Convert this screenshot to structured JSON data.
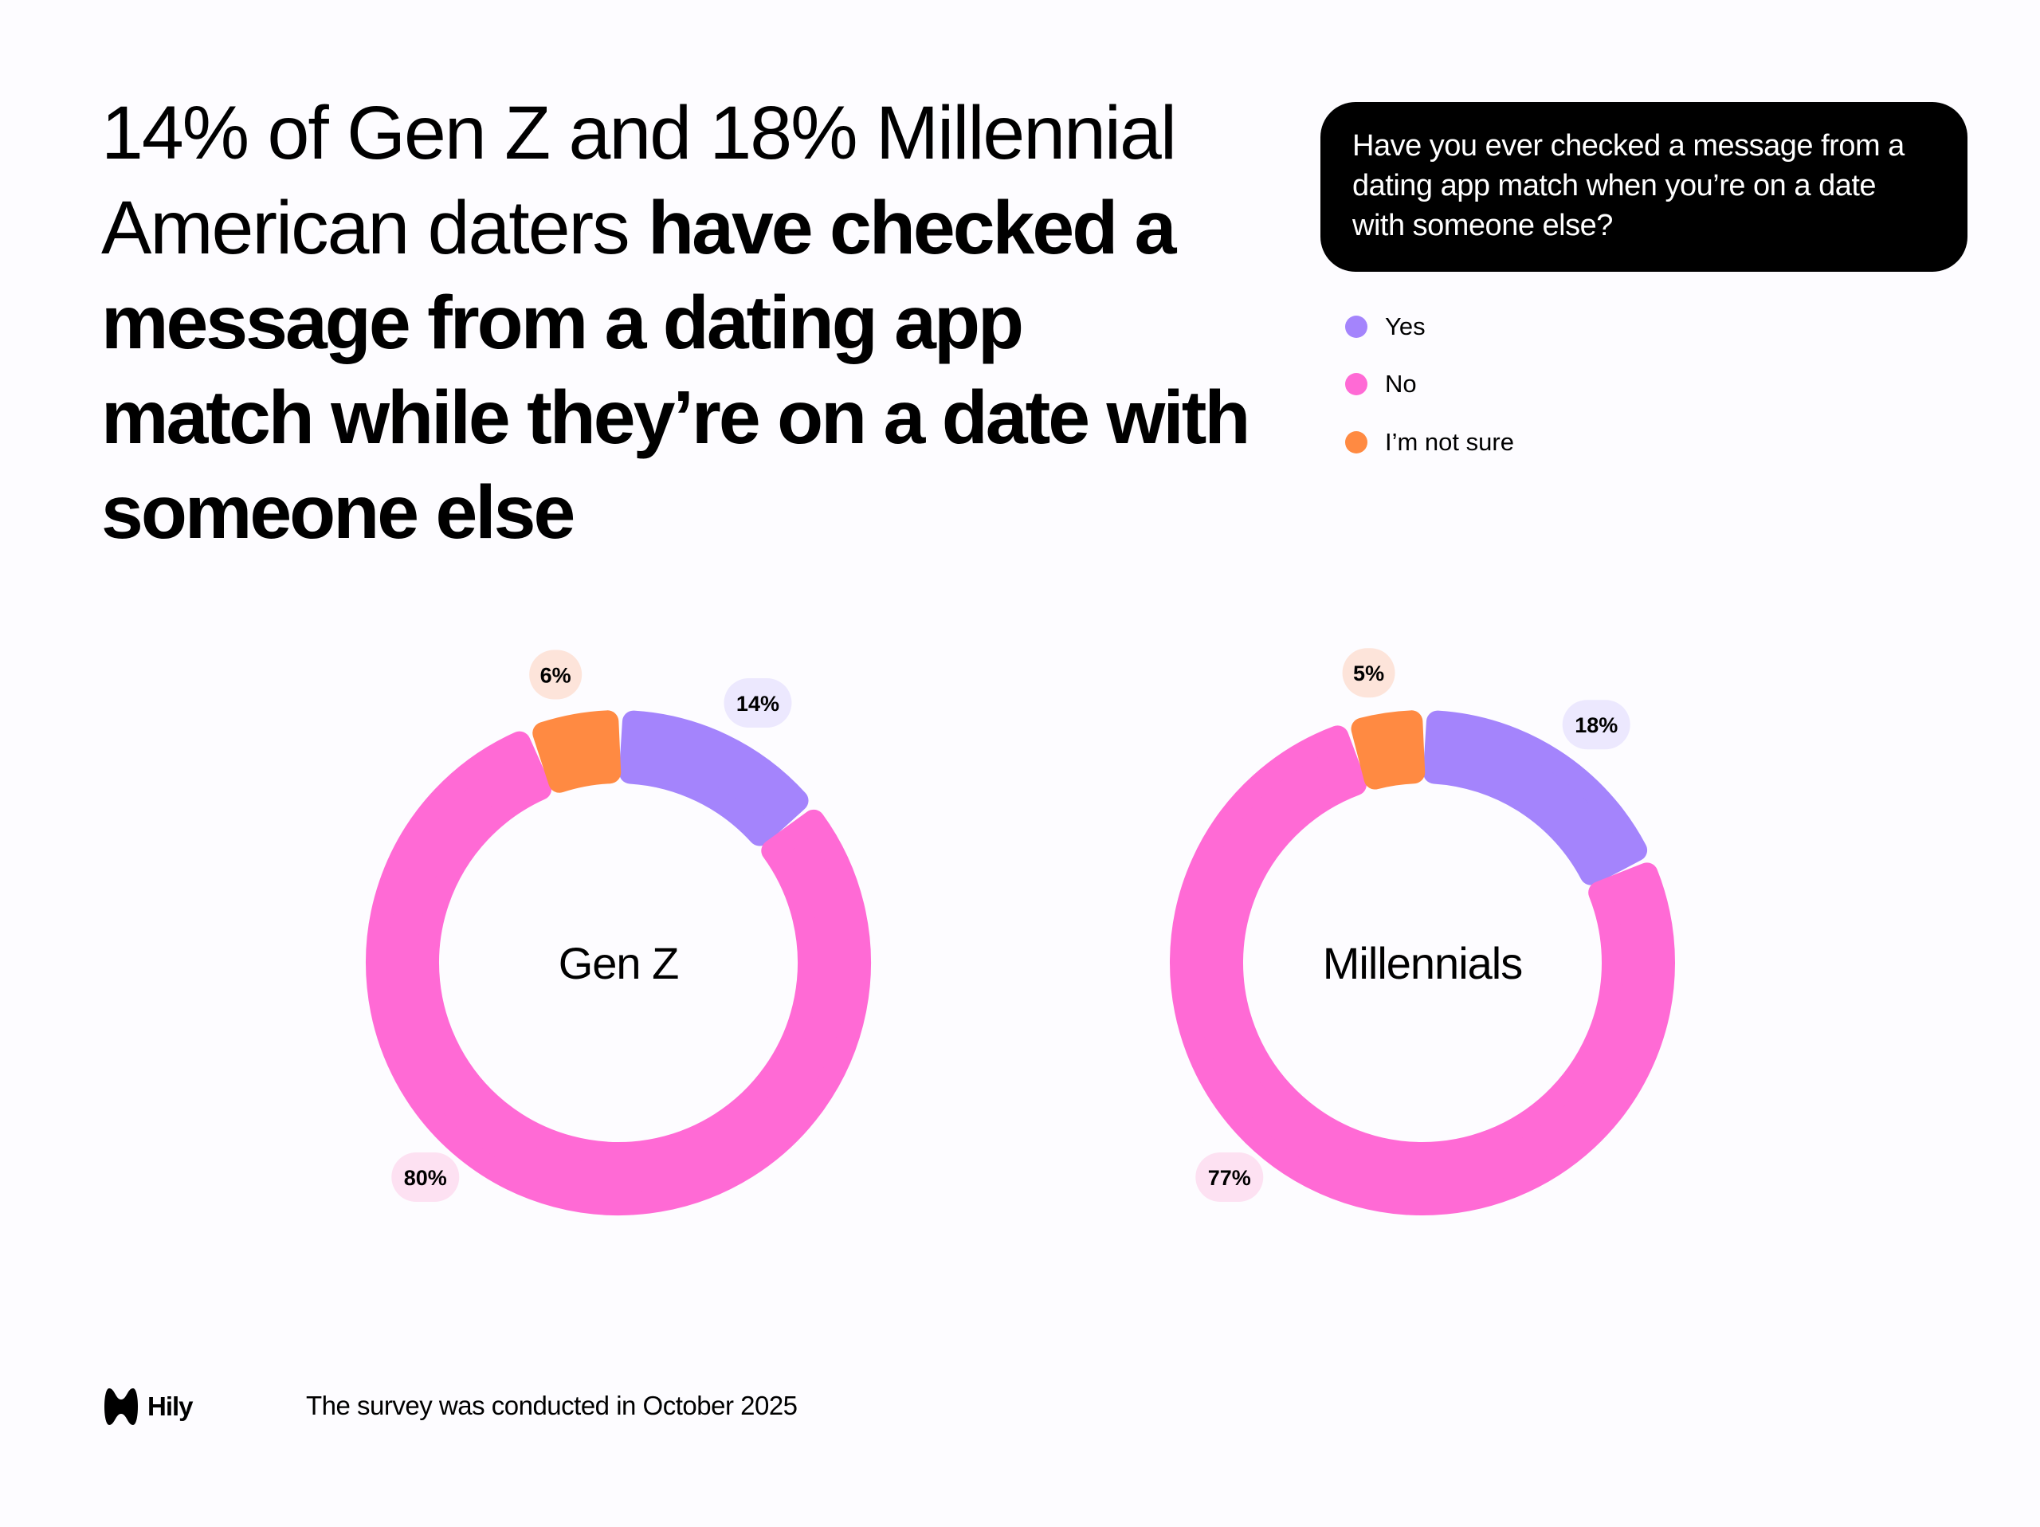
{
  "title": {
    "regular": "14% of Gen Z and 18% Millennial American daters ",
    "bold": "have checked a message from a dating app match while they’re on a date with someone else"
  },
  "question": "Have you ever checked a message from a dating app match when you’re on a date with someone else?",
  "legend": [
    {
      "label": "Yes",
      "color": "#a484fc"
    },
    {
      "label": "No",
      "color": "#ff6ad5"
    },
    {
      "label": "I’m not sure",
      "color": "#ff8a42"
    }
  ],
  "chart_data": [
    {
      "type": "pie",
      "variant": "donut",
      "center_label": "Gen Z",
      "categories": [
        "Yes",
        "No",
        "I’m not sure"
      ],
      "values": [
        14,
        80,
        6
      ],
      "data_labels": [
        "14%",
        "80%",
        "6%"
      ],
      "colors": [
        "#a484fc",
        "#ff6ad5",
        "#ff8a42"
      ],
      "label_backgrounds": [
        "#ece8fe",
        "#fde1f2",
        "#fde4da"
      ]
    },
    {
      "type": "pie",
      "variant": "donut",
      "center_label": "Millennials",
      "categories": [
        "Yes",
        "No",
        "I’m not sure"
      ],
      "values": [
        18,
        77,
        5
      ],
      "data_labels": [
        "18%",
        "77%",
        "5%"
      ],
      "colors": [
        "#a484fc",
        "#ff6ad5",
        "#ff8a42"
      ],
      "label_backgrounds": [
        "#ece8fe",
        "#fde1f2",
        "#fde4da"
      ]
    }
  ],
  "footer": {
    "logo": "Hily",
    "note": "The survey was conducted in October 2025"
  }
}
